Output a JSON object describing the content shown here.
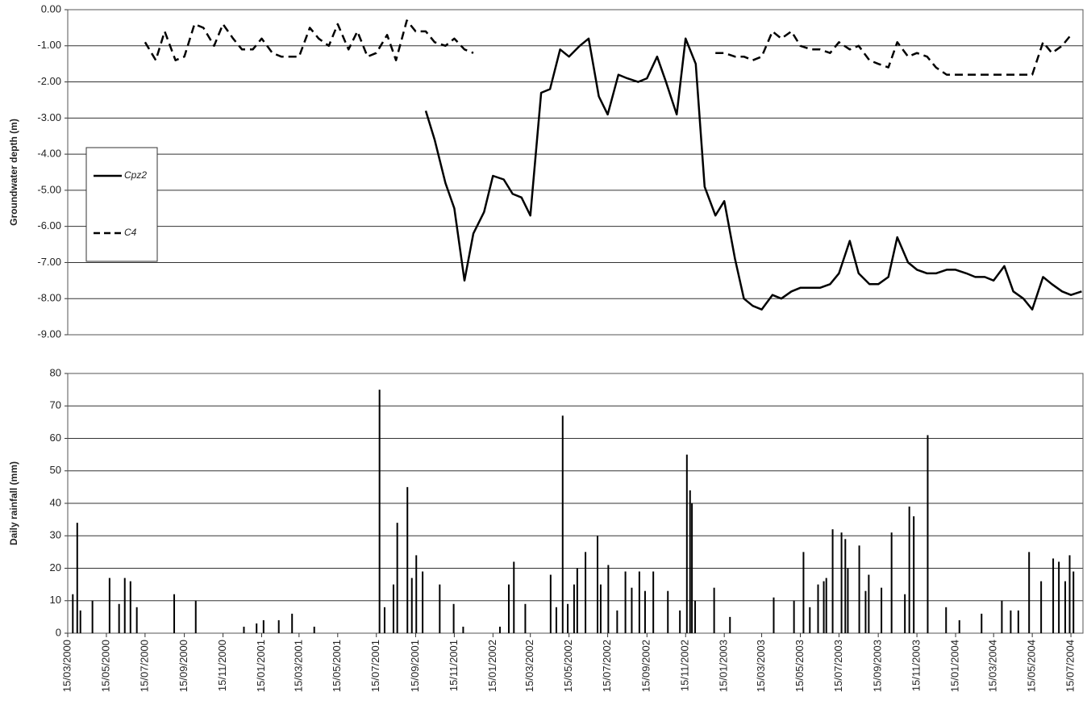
{
  "chart_data": [
    {
      "type": "line",
      "ylabel": "Groundwater depth (m)",
      "grid": true,
      "legend": "center-left",
      "xlim": [
        "15/03/2000",
        "03/08/2004"
      ],
      "ylim": [
        -9,
        0
      ],
      "yticks": [
        {
          "value": 0,
          "label": "0.00"
        },
        {
          "value": -1,
          "label": "-1.00"
        },
        {
          "value": -2,
          "label": "-2.00"
        },
        {
          "value": -3,
          "label": "-3.00"
        },
        {
          "value": -4,
          "label": "-4.00"
        },
        {
          "value": -5,
          "label": "-5.00"
        },
        {
          "value": -6,
          "label": "-6.00"
        },
        {
          "value": -7,
          "label": "-7.00"
        },
        {
          "value": -8,
          "label": "-8.00"
        },
        {
          "value": -9,
          "label": "-9.00"
        }
      ],
      "x": [
        "15/03/2000",
        "01/04/2000",
        "15/04/2000",
        "01/05/2000",
        "15/05/2000",
        "01/06/2000",
        "15/06/2000",
        "01/07/2000",
        "15/07/2000",
        "01/08/2000",
        "15/08/2000",
        "01/09/2000",
        "15/09/2000",
        "01/10/2000",
        "15/10/2000",
        "01/11/2000",
        "15/11/2000",
        "01/12/2000",
        "15/12/2000",
        "01/01/2001",
        "15/01/2001",
        "01/02/2001",
        "15/02/2001",
        "01/03/2001",
        "15/03/2001",
        "01/04/2001",
        "15/04/2001",
        "01/05/2001",
        "15/05/2001",
        "01/06/2001",
        "15/06/2001",
        "01/07/2001",
        "15/07/2001",
        "01/08/2001",
        "15/08/2001",
        "01/09/2001",
        "15/09/2001",
        "01/10/2001",
        "15/10/2001",
        "01/11/2001",
        "15/11/2001",
        "01/12/2001",
        "15/12/2001",
        "01/01/2002",
        "15/01/2002",
        "01/02/2002",
        "15/02/2002",
        "01/03/2002",
        "15/03/2002",
        "01/04/2002",
        "15/04/2002",
        "01/05/2002",
        "15/05/2002",
        "01/06/2002",
        "15/06/2002",
        "01/07/2002",
        "15/07/2002",
        "01/08/2002",
        "15/08/2002",
        "01/09/2002",
        "15/09/2002",
        "01/10/2002",
        "15/10/2002",
        "01/11/2002",
        "15/11/2002",
        "01/12/2002",
        "15/12/2002",
        "01/01/2003",
        "15/01/2003",
        "01/02/2003",
        "15/02/2003",
        "01/03/2003",
        "15/03/2003",
        "01/04/2003",
        "15/04/2003",
        "01/05/2003",
        "15/05/2003",
        "01/06/2003",
        "15/06/2003",
        "01/07/2003",
        "15/07/2003",
        "01/08/2003",
        "15/08/2003",
        "01/09/2003",
        "15/09/2003",
        "01/10/2003",
        "15/10/2003",
        "01/11/2003",
        "15/11/2003",
        "01/12/2003",
        "15/12/2003",
        "01/01/2004",
        "15/01/2004",
        "01/02/2004",
        "15/02/2004",
        "01/03/2004",
        "15/03/2004",
        "01/04/2004",
        "15/04/2004",
        "01/05/2004",
        "15/05/2004",
        "01/06/2004",
        "15/06/2004",
        "01/07/2004",
        "15/07/2004",
        "01/08/2004"
      ],
      "series": [
        {
          "name": "Cpz2",
          "color": "#000000",
          "line_style": "solid",
          "values": [
            null,
            null,
            null,
            null,
            null,
            null,
            null,
            null,
            null,
            null,
            null,
            null,
            null,
            null,
            null,
            null,
            null,
            null,
            null,
            null,
            null,
            null,
            null,
            null,
            null,
            null,
            null,
            null,
            null,
            null,
            null,
            null,
            null,
            null,
            null,
            null,
            null,
            -2.8,
            -3.6,
            -4.8,
            -5.5,
            -7.5,
            -6.2,
            -5.6,
            -4.6,
            -4.7,
            -5.1,
            -5.2,
            -5.7,
            -2.3,
            -2.2,
            -1.1,
            -1.3,
            -1.0,
            -0.8,
            -2.4,
            -2.9,
            -1.8,
            -1.9,
            -2.0,
            -1.9,
            -1.3,
            -2.0,
            -2.9,
            -0.8,
            -1.5,
            -4.9,
            -5.7,
            -5.3,
            -6.9,
            -8.0,
            -8.2,
            -8.3,
            -7.9,
            -8.0,
            -7.8,
            -7.7,
            -7.7,
            -7.7,
            -7.6,
            -7.3,
            -6.4,
            -7.3,
            -7.6,
            -7.6,
            -7.4,
            -6.3,
            -7.0,
            -7.2,
            -7.3,
            -7.3,
            -7.2,
            -7.2,
            -7.3,
            -7.4,
            -7.4,
            -7.5,
            -7.1,
            -7.8,
            -8.0,
            -8.3,
            -7.4,
            -7.6,
            -7.8,
            -7.9,
            -7.8
          ]
        },
        {
          "name": "C4",
          "color": "#000000",
          "line_style": "dashed",
          "values": [
            null,
            null,
            null,
            null,
            null,
            null,
            null,
            null,
            -0.9,
            -1.4,
            -0.6,
            -1.4,
            -1.3,
            -0.4,
            -0.5,
            -1.0,
            -0.4,
            -0.8,
            -1.1,
            -1.1,
            -0.8,
            -1.2,
            -1.3,
            -1.3,
            -1.3,
            -0.5,
            -0.8,
            -1.0,
            -0.4,
            -1.1,
            -0.6,
            -1.3,
            -1.2,
            -0.7,
            -1.4,
            -0.3,
            -0.6,
            -0.6,
            -0.9,
            -1.0,
            -0.8,
            -1.1,
            -1.2,
            null,
            null,
            null,
            null,
            null,
            null,
            null,
            null,
            null,
            null,
            null,
            null,
            null,
            null,
            null,
            null,
            null,
            null,
            null,
            null,
            null,
            null,
            null,
            null,
            -1.2,
            -1.2,
            -1.3,
            -1.3,
            -1.4,
            -1.3,
            -0.6,
            -0.8,
            -0.6,
            -1.0,
            -1.1,
            -1.1,
            -1.2,
            -0.9,
            -1.1,
            -1.0,
            -1.4,
            -1.5,
            -1.6,
            -0.9,
            -1.3,
            -1.2,
            -1.3,
            -1.6,
            -1.8,
            -1.8,
            -1.8,
            -1.8,
            -1.8,
            -1.8,
            -1.8,
            -1.8,
            -1.8,
            -1.8,
            -0.9,
            -1.2,
            -1.0,
            -0.7,
            null
          ]
        }
      ]
    },
    {
      "type": "bar",
      "ylabel": "Daily rainfall (mm)",
      "grid": true,
      "color": "#000000",
      "xlim": [
        "15/03/2000",
        "03/08/2004"
      ],
      "ylim": [
        0,
        80
      ],
      "yticks": [
        0,
        10,
        20,
        30,
        40,
        50,
        60,
        70,
        80
      ],
      "xticks": [
        "15/03/2000",
        "15/05/2000",
        "15/07/2000",
        "15/09/2000",
        "15/11/2000",
        "15/01/2001",
        "15/03/2001",
        "15/05/2001",
        "15/07/2001",
        "15/09/2001",
        "15/11/2001",
        "15/01/2002",
        "15/03/2002",
        "15/05/2002",
        "15/07/2002",
        "15/09/2002",
        "15/11/2002",
        "15/01/2003",
        "15/03/2003",
        "15/05/2003",
        "15/07/2003",
        "15/09/2003",
        "15/11/2003",
        "15/01/2004",
        "15/03/2004",
        "15/05/2004",
        "15/07/2004"
      ],
      "x": [
        "23/03/2000",
        "30/03/2000",
        "04/04/2000",
        "23/04/2000",
        "20/05/2000",
        "04/06/2000",
        "13/06/2000",
        "22/06/2000",
        "02/07/2000",
        "30/08/2000",
        "03/10/2000",
        "18/12/2000",
        "07/01/2001",
        "18/01/2001",
        "11/02/2001",
        "04/03/2001",
        "08/04/2001",
        "20/07/2001",
        "28/07/2001",
        "11/08/2001",
        "17/08/2001",
        "02/09/2001",
        "09/09/2001",
        "16/09/2001",
        "26/09/2001",
        "23/10/2001",
        "14/11/2001",
        "29/11/2001",
        "26/01/2002",
        "09/02/2002",
        "17/02/2002",
        "07/03/2002",
        "16/04/2002",
        "25/04/2002",
        "05/05/2002",
        "13/05/2002",
        "23/05/2002",
        "28/05/2002",
        "10/06/2002",
        "29/06/2002",
        "04/07/2002",
        "16/07/2002",
        "30/07/2002",
        "12/08/2002",
        "22/08/2002",
        "03/09/2002",
        "12/09/2002",
        "25/09/2002",
        "18/10/2002",
        "06/11/2002",
        "17/11/2002",
        "22/11/2002",
        "25/11/2002",
        "30/11/2002",
        "30/12/2002",
        "24/01/2003",
        "03/04/2003",
        "05/05/2003",
        "20/05/2003",
        "30/05/2003",
        "12/06/2003",
        "21/06/2003",
        "25/06/2003",
        "05/07/2003",
        "19/07/2003",
        "25/07/2003",
        "29/07/2003",
        "16/08/2003",
        "26/08/2003",
        "31/08/2003",
        "20/09/2003",
        "06/10/2003",
        "27/10/2003",
        "03/11/2003",
        "10/11/2003",
        "02/12/2003",
        "31/12/2003",
        "21/01/2004",
        "25/02/2004",
        "28/03/2004",
        "11/04/2004",
        "23/04/2004",
        "10/05/2004",
        "29/05/2004",
        "17/06/2004",
        "26/06/2004",
        "06/07/2004",
        "13/07/2004",
        "19/07/2004"
      ],
      "values": [
        12,
        34,
        7,
        10,
        17,
        9,
        17,
        16,
        8,
        12,
        10,
        2,
        3,
        4,
        4,
        6,
        2,
        75,
        8,
        15,
        34,
        45,
        17,
        24,
        19,
        15,
        9,
        2,
        2,
        15,
        22,
        9,
        18,
        8,
        67,
        9,
        15,
        20,
        25,
        30,
        15,
        21,
        7,
        19,
        14,
        19,
        13,
        19,
        13,
        7,
        55,
        44,
        40,
        10,
        14,
        5,
        11,
        10,
        25,
        8,
        15,
        16,
        17,
        32,
        31,
        29,
        20,
        27,
        13,
        18,
        14,
        31,
        12,
        39,
        36,
        61,
        8,
        4,
        6,
        10,
        7,
        7,
        25,
        16,
        23,
        22,
        16,
        24,
        19
      ]
    }
  ]
}
